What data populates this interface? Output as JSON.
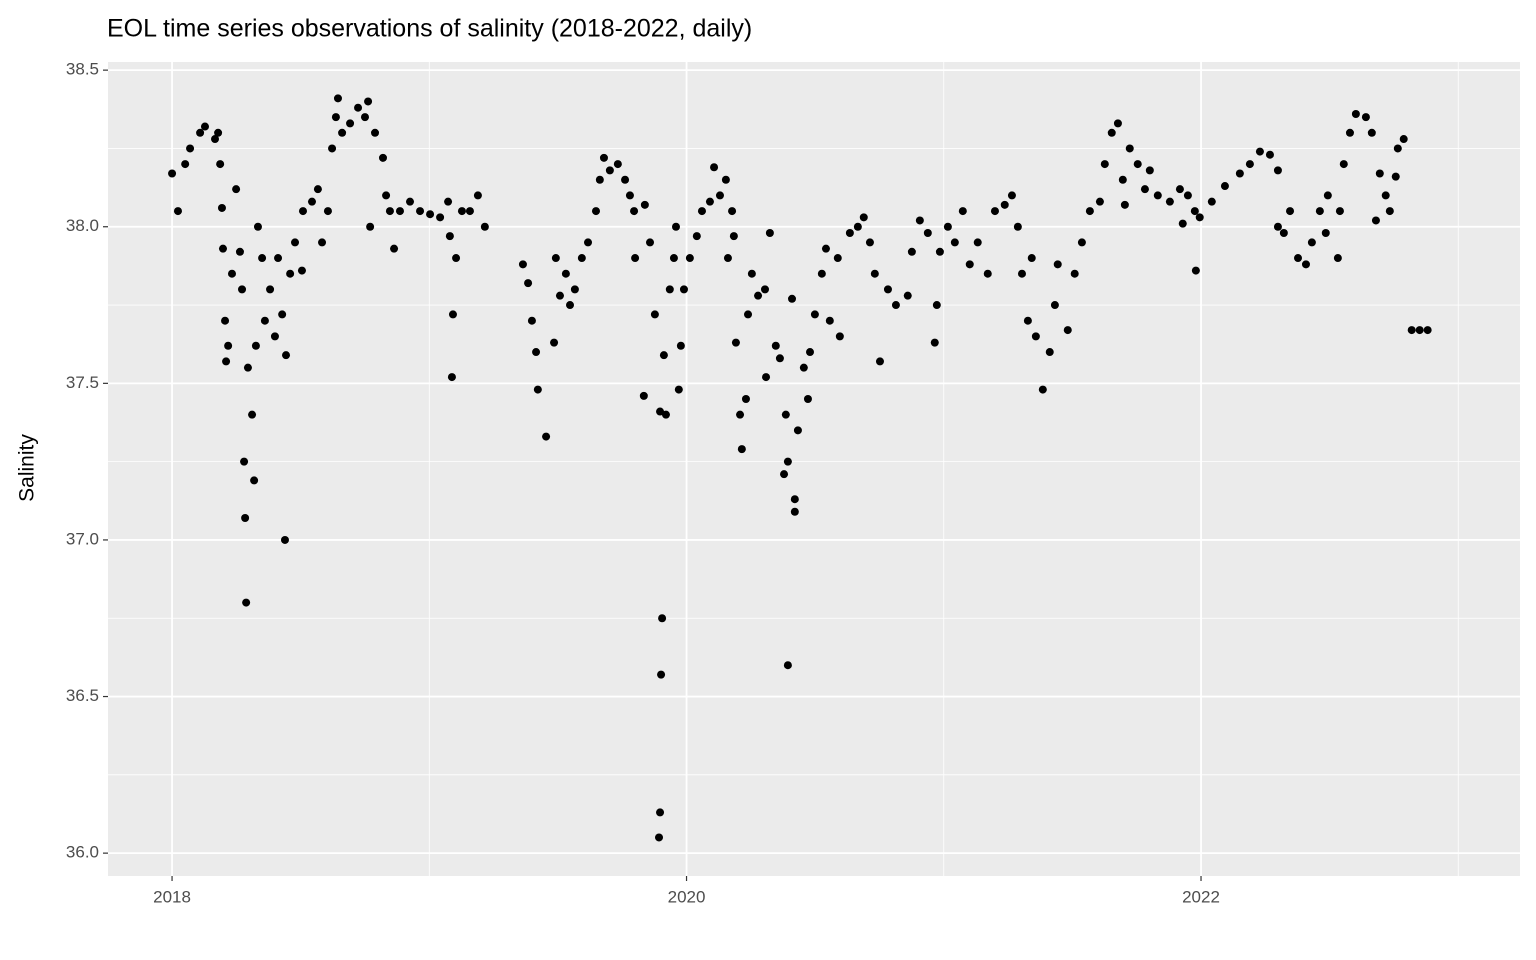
{
  "chart_data": {
    "type": "scatter",
    "title": "EOL time series observations of salinity (2018-2022, daily)",
    "y_label": "Salinity",
    "color": "#000000",
    "grid": true,
    "xlim": [
      2017.751,
      2023.24
    ],
    "ylim": [
      35.927,
      38.526
    ],
    "xticks": [
      2018,
      2020,
      2022
    ],
    "yticks": [
      {
        "value": 36,
        "label": "36.0"
      },
      36.5,
      {
        "value": 37,
        "label": "37.0"
      },
      37.5,
      {
        "value": 38,
        "label": "38.0"
      },
      38.5
    ],
    "x_minor_grid": [
      2019,
      2021,
      2023
    ],
    "y_minor_grid": [
      36.25,
      36.75,
      37.25,
      37.75,
      38.25
    ],
    "x": [
      2018.0,
      2018.023,
      2018.051,
      2018.07,
      2018.109,
      2018.128,
      2018.167,
      2018.179,
      2018.187,
      2018.194,
      2018.198,
      2018.206,
      2018.21,
      2018.218,
      2018.233,
      2018.249,
      2018.264,
      2018.272,
      2018.28,
      2018.284,
      2018.288,
      2018.295,
      2018.311,
      2018.319,
      2018.326,
      2018.334,
      2018.35,
      2018.361,
      2018.381,
      2018.4,
      2018.412,
      2018.428,
      2018.439,
      2018.443,
      2018.459,
      2018.478,
      2018.505,
      2018.509,
      2018.544,
      2018.567,
      2018.583,
      2018.606,
      2018.622,
      2018.637,
      2018.645,
      2018.661,
      2018.692,
      2018.723,
      2018.75,
      2018.762,
      2018.77,
      2018.789,
      2018.82,
      2018.832,
      2018.847,
      2018.863,
      2018.886,
      2018.925,
      2018.964,
      2019.003,
      2019.042,
      2019.073,
      2019.08,
      2019.088,
      2019.092,
      2019.104,
      2019.127,
      2019.158,
      2019.189,
      2019.216,
      2019.364,
      2019.384,
      2019.399,
      2019.415,
      2019.422,
      2019.454,
      2019.485,
      2019.492,
      2019.508,
      2019.531,
      2019.547,
      2019.566,
      2019.593,
      2019.617,
      2019.648,
      2019.663,
      2019.679,
      2019.702,
      2019.733,
      2019.761,
      2019.78,
      2019.796,
      2019.8,
      2019.834,
      2019.838,
      2019.858,
      2019.877,
      2019.893,
      2019.897,
      2019.897,
      2019.901,
      2019.905,
      2019.912,
      2019.92,
      2019.935,
      2019.951,
      2019.959,
      2019.97,
      2019.978,
      2019.99,
      2020.013,
      2020.04,
      2020.06,
      2020.091,
      2020.107,
      2020.13,
      2020.153,
      2020.161,
      2020.177,
      2020.184,
      2020.192,
      2020.208,
      2020.215,
      2020.231,
      2020.239,
      2020.254,
      2020.278,
      2020.305,
      2020.309,
      2020.324,
      2020.347,
      2020.363,
      2020.379,
      2020.386,
      2020.394,
      2020.394,
      2020.41,
      2020.421,
      2020.421,
      2020.433,
      2020.456,
      2020.472,
      2020.48,
      2020.499,
      2020.526,
      2020.542,
      2020.557,
      2020.588,
      2020.596,
      2020.635,
      2020.666,
      2020.689,
      2020.713,
      2020.732,
      2020.752,
      2020.783,
      2020.814,
      2020.86,
      2020.876,
      2020.907,
      2020.938,
      2020.965,
      2020.973,
      2020.985,
      2021.016,
      2021.043,
      2021.074,
      2021.101,
      2021.132,
      2021.171,
      2021.199,
      2021.237,
      2021.265,
      2021.288,
      2021.304,
      2021.327,
      2021.342,
      2021.358,
      2021.385,
      2021.412,
      2021.432,
      2021.443,
      2021.482,
      2021.509,
      2021.537,
      2021.568,
      2021.607,
      2021.626,
      2021.653,
      2021.677,
      2021.696,
      2021.704,
      2021.723,
      2021.754,
      2021.782,
      2021.801,
      2021.832,
      2021.879,
      2021.918,
      2021.929,
      2021.949,
      2021.976,
      2021.98,
      2021.995,
      2022.042,
      2022.093,
      2022.151,
      2022.19,
      2022.229,
      2022.268,
      2022.299,
      2022.299,
      2022.322,
      2022.346,
      2022.377,
      2022.408,
      2022.431,
      2022.462,
      2022.485,
      2022.493,
      2022.532,
      2022.54,
      2022.555,
      2022.579,
      2022.602,
      2022.641,
      2022.664,
      2022.68,
      2022.695,
      2022.718,
      2022.734,
      2022.757,
      2022.765,
      2022.788,
      2022.819,
      2022.85,
      2022.881
    ],
    "values": [
      38.17,
      38.05,
      38.2,
      38.25,
      38.3,
      38.32,
      38.28,
      38.3,
      38.2,
      38.06,
      37.93,
      37.7,
      37.57,
      37.62,
      37.85,
      38.12,
      37.92,
      37.8,
      37.25,
      37.07,
      36.8,
      37.55,
      37.4,
      37.19,
      37.62,
      38.0,
      37.9,
      37.7,
      37.8,
      37.65,
      37.9,
      37.72,
      37.0,
      37.59,
      37.85,
      37.95,
      37.86,
      38.05,
      38.08,
      38.12,
      37.95,
      38.05,
      38.25,
      38.35,
      38.41,
      38.3,
      38.33,
      38.38,
      38.35,
      38.4,
      38.0,
      38.3,
      38.22,
      38.1,
      38.05,
      37.93,
      38.05,
      38.08,
      38.05,
      38.04,
      38.03,
      38.08,
      37.97,
      37.52,
      37.72,
      37.9,
      38.05,
      38.05,
      38.1,
      38.0,
      37.88,
      37.82,
      37.7,
      37.6,
      37.48,
      37.33,
      37.63,
      37.9,
      37.78,
      37.85,
      37.75,
      37.8,
      37.9,
      37.95,
      38.05,
      38.15,
      38.22,
      38.18,
      38.2,
      38.15,
      38.1,
      38.05,
      37.9,
      37.46,
      38.07,
      37.95,
      37.72,
      36.05,
      37.41,
      36.13,
      36.57,
      36.75,
      37.59,
      37.4,
      37.8,
      37.9,
      38.0,
      37.48,
      37.62,
      37.8,
      37.9,
      37.97,
      38.05,
      38.08,
      38.19,
      38.1,
      38.15,
      37.9,
      38.05,
      37.97,
      37.63,
      37.4,
      37.29,
      37.45,
      37.72,
      37.85,
      37.78,
      37.8,
      37.52,
      37.98,
      37.62,
      37.58,
      37.21,
      37.4,
      36.6,
      37.25,
      37.77,
      37.13,
      37.09,
      37.35,
      37.55,
      37.45,
      37.6,
      37.72,
      37.85,
      37.93,
      37.7,
      37.9,
      37.65,
      37.98,
      38.0,
      38.03,
      37.95,
      37.85,
      37.57,
      37.8,
      37.75,
      37.78,
      37.92,
      38.02,
      37.98,
      37.63,
      37.75,
      37.92,
      38.0,
      37.95,
      38.05,
      37.88,
      37.95,
      37.85,
      38.05,
      38.07,
      38.1,
      38.0,
      37.85,
      37.7,
      37.9,
      37.65,
      37.48,
      37.6,
      37.75,
      37.88,
      37.67,
      37.85,
      37.95,
      38.05,
      38.08,
      38.2,
      38.3,
      38.33,
      38.15,
      38.07,
      38.25,
      38.2,
      38.12,
      38.18,
      38.1,
      38.08,
      38.12,
      38.01,
      38.1,
      38.05,
      37.86,
      38.03,
      38.08,
      38.13,
      38.17,
      38.2,
      38.24,
      38.23,
      38.18,
      38.0,
      37.98,
      38.05,
      37.9,
      37.88,
      37.95,
      38.05,
      37.98,
      38.1,
      37.9,
      38.05,
      38.2,
      38.3,
      38.36,
      38.35,
      38.3,
      38.02,
      38.17,
      38.1,
      38.05,
      38.16,
      38.25,
      38.28,
      37.67,
      37.67,
      37.67
    ]
  }
}
